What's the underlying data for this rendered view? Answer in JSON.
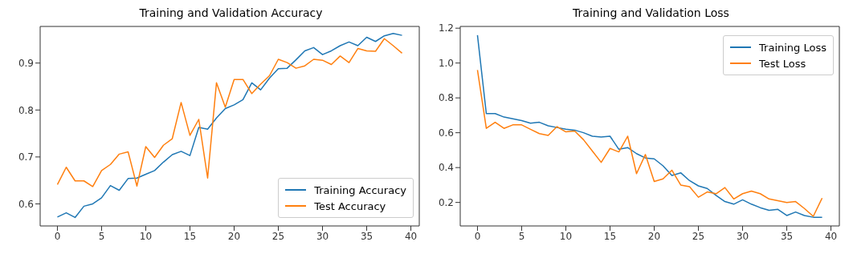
{
  "chart_data": [
    {
      "type": "line",
      "title": "Training and Validation Accuracy",
      "x": [
        0,
        1,
        2,
        3,
        4,
        5,
        6,
        7,
        8,
        9,
        10,
        11,
        12,
        13,
        14,
        15,
        16,
        17,
        18,
        19,
        20,
        21,
        22,
        23,
        24,
        25,
        26,
        27,
        28,
        29,
        30,
        31,
        32,
        33,
        34,
        35,
        36,
        37,
        38,
        39
      ],
      "xlim": [
        -1.95,
        40.95
      ],
      "xticks": [
        0,
        5,
        10,
        15,
        20,
        25,
        30,
        35,
        40
      ],
      "ylim": [
        0.553,
        0.978
      ],
      "yticks": [
        0.6,
        0.7,
        0.8,
        0.9
      ],
      "legend": "bottom right",
      "marker": "none",
      "line_style": "solid",
      "series": [
        {
          "name": "Training Accuracy",
          "color": "#1f77b4",
          "values": [
            0.572,
            0.581,
            0.571,
            0.595,
            0.6,
            0.613,
            0.639,
            0.629,
            0.654,
            0.655,
            0.663,
            0.671,
            0.689,
            0.705,
            0.712,
            0.703,
            0.763,
            0.759,
            0.783,
            0.803,
            0.811,
            0.822,
            0.858,
            0.843,
            0.868,
            0.888,
            0.889,
            0.907,
            0.926,
            0.933,
            0.918,
            0.926,
            0.937,
            0.945,
            0.937,
            0.955,
            0.946,
            0.958,
            0.963,
            0.959
          ]
        },
        {
          "name": "Test Accuracy",
          "color": "#ff7f0e",
          "values": [
            0.641,
            0.678,
            0.649,
            0.649,
            0.637,
            0.671,
            0.684,
            0.706,
            0.711,
            0.638,
            0.722,
            0.699,
            0.725,
            0.739,
            0.816,
            0.746,
            0.78,
            0.655,
            0.858,
            0.806,
            0.865,
            0.865,
            0.835,
            0.855,
            0.873,
            0.908,
            0.901,
            0.889,
            0.894,
            0.908,
            0.906,
            0.897,
            0.915,
            0.901,
            0.931,
            0.926,
            0.925,
            0.952,
            0.937,
            0.921
          ]
        }
      ]
    },
    {
      "type": "line",
      "title": "Training and Validation Loss",
      "x": [
        0,
        1,
        2,
        3,
        4,
        5,
        6,
        7,
        8,
        9,
        10,
        11,
        12,
        13,
        14,
        15,
        16,
        17,
        18,
        19,
        20,
        21,
        22,
        23,
        24,
        25,
        26,
        27,
        28,
        29,
        30,
        31,
        32,
        33,
        34,
        35,
        36,
        37,
        38,
        39
      ],
      "xlim": [
        -1.95,
        40.95
      ],
      "xticks": [
        0,
        5,
        10,
        15,
        20,
        25,
        30,
        35,
        40
      ],
      "ylim": [
        0.065,
        1.21
      ],
      "yticks": [
        {
          "value": 0.2,
          "label": "0.2"
        },
        {
          "value": 0.4,
          "label": "0.4"
        },
        {
          "value": 0.6,
          "label": "0.6"
        },
        {
          "value": 0.8,
          "label": "0.8"
        },
        {
          "value": 1.0,
          "label": "1.0"
        },
        {
          "value": 1.2,
          "label": "1.2"
        }
      ],
      "legend": "top right",
      "marker": "none",
      "line_style": "solid",
      "series": [
        {
          "name": "Training Loss",
          "color": "#1f77b4",
          "values": [
            1.16,
            0.71,
            0.71,
            0.69,
            0.68,
            0.67,
            0.655,
            0.66,
            0.64,
            0.63,
            0.62,
            0.615,
            0.6,
            0.58,
            0.575,
            0.58,
            0.505,
            0.515,
            0.48,
            0.455,
            0.45,
            0.41,
            0.355,
            0.37,
            0.325,
            0.295,
            0.28,
            0.24,
            0.205,
            0.19,
            0.215,
            0.19,
            0.17,
            0.155,
            0.16,
            0.125,
            0.145,
            0.125,
            0.115,
            0.115
          ]
        },
        {
          "name": "Test Loss",
          "color": "#ff7f0e",
          "values": [
            0.96,
            0.625,
            0.66,
            0.625,
            0.645,
            0.645,
            0.62,
            0.595,
            0.585,
            0.635,
            0.605,
            0.61,
            0.56,
            0.495,
            0.43,
            0.51,
            0.49,
            0.58,
            0.365,
            0.475,
            0.32,
            0.335,
            0.385,
            0.3,
            0.29,
            0.23,
            0.26,
            0.25,
            0.285,
            0.22,
            0.25,
            0.265,
            0.25,
            0.22,
            0.21,
            0.2,
            0.205,
            0.165,
            0.12,
            0.225
          ]
        }
      ]
    }
  ]
}
